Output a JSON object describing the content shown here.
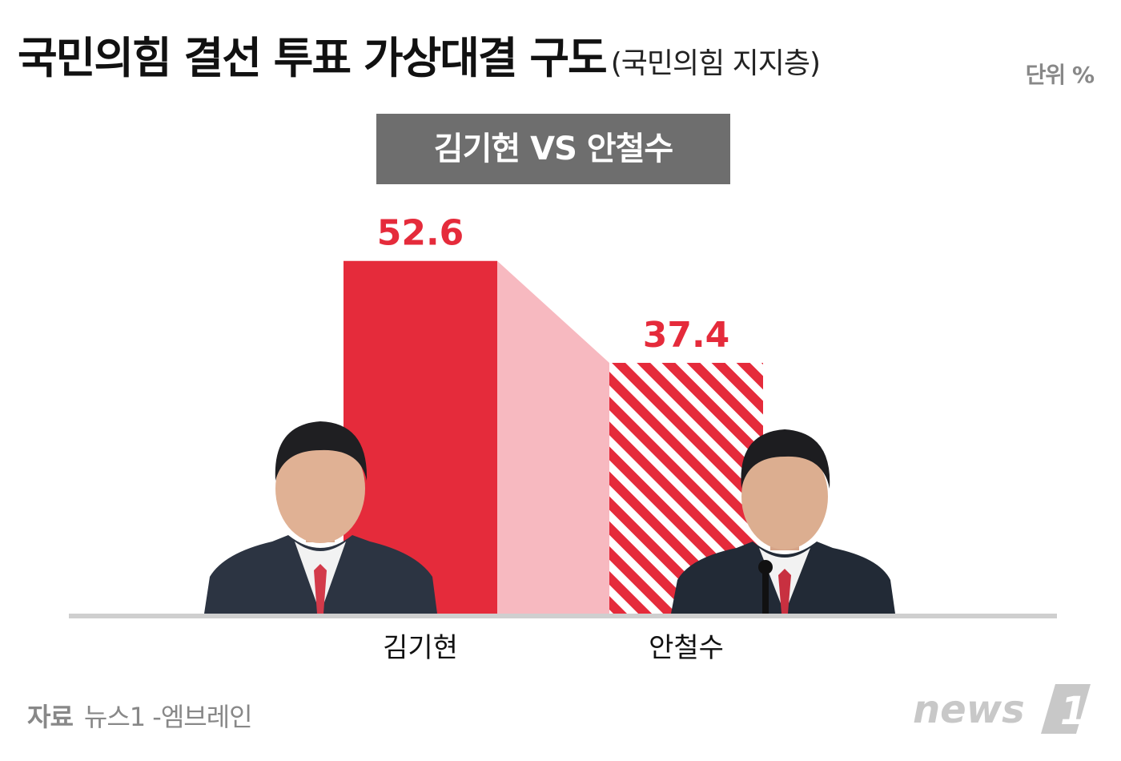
{
  "header": {
    "title": "국민의힘 결선 투표 가상대결 구도",
    "subtitle": "(국민의힘 지지층)",
    "unit": "단위 %"
  },
  "matchup_label": "김기현 VS 안철수",
  "chart_data": {
    "type": "bar",
    "categories": [
      "김기현",
      "안철수"
    ],
    "values": [
      52.6,
      37.4
    ],
    "data_labels": [
      "52.6",
      "37.4"
    ],
    "ylim": [
      0,
      60
    ],
    "colors": {
      "bar": "#e52b3b",
      "connector": "#f7b9c0",
      "label": "#e52b3b",
      "baseline": "#cfcfcf"
    },
    "styles": [
      "solid",
      "striped"
    ],
    "grid": false
  },
  "source": {
    "key": "자료",
    "value": "뉴스1 -엠브레인"
  },
  "logo": {
    "text": "news",
    "number": "1",
    "color": "#c8c8c8"
  }
}
